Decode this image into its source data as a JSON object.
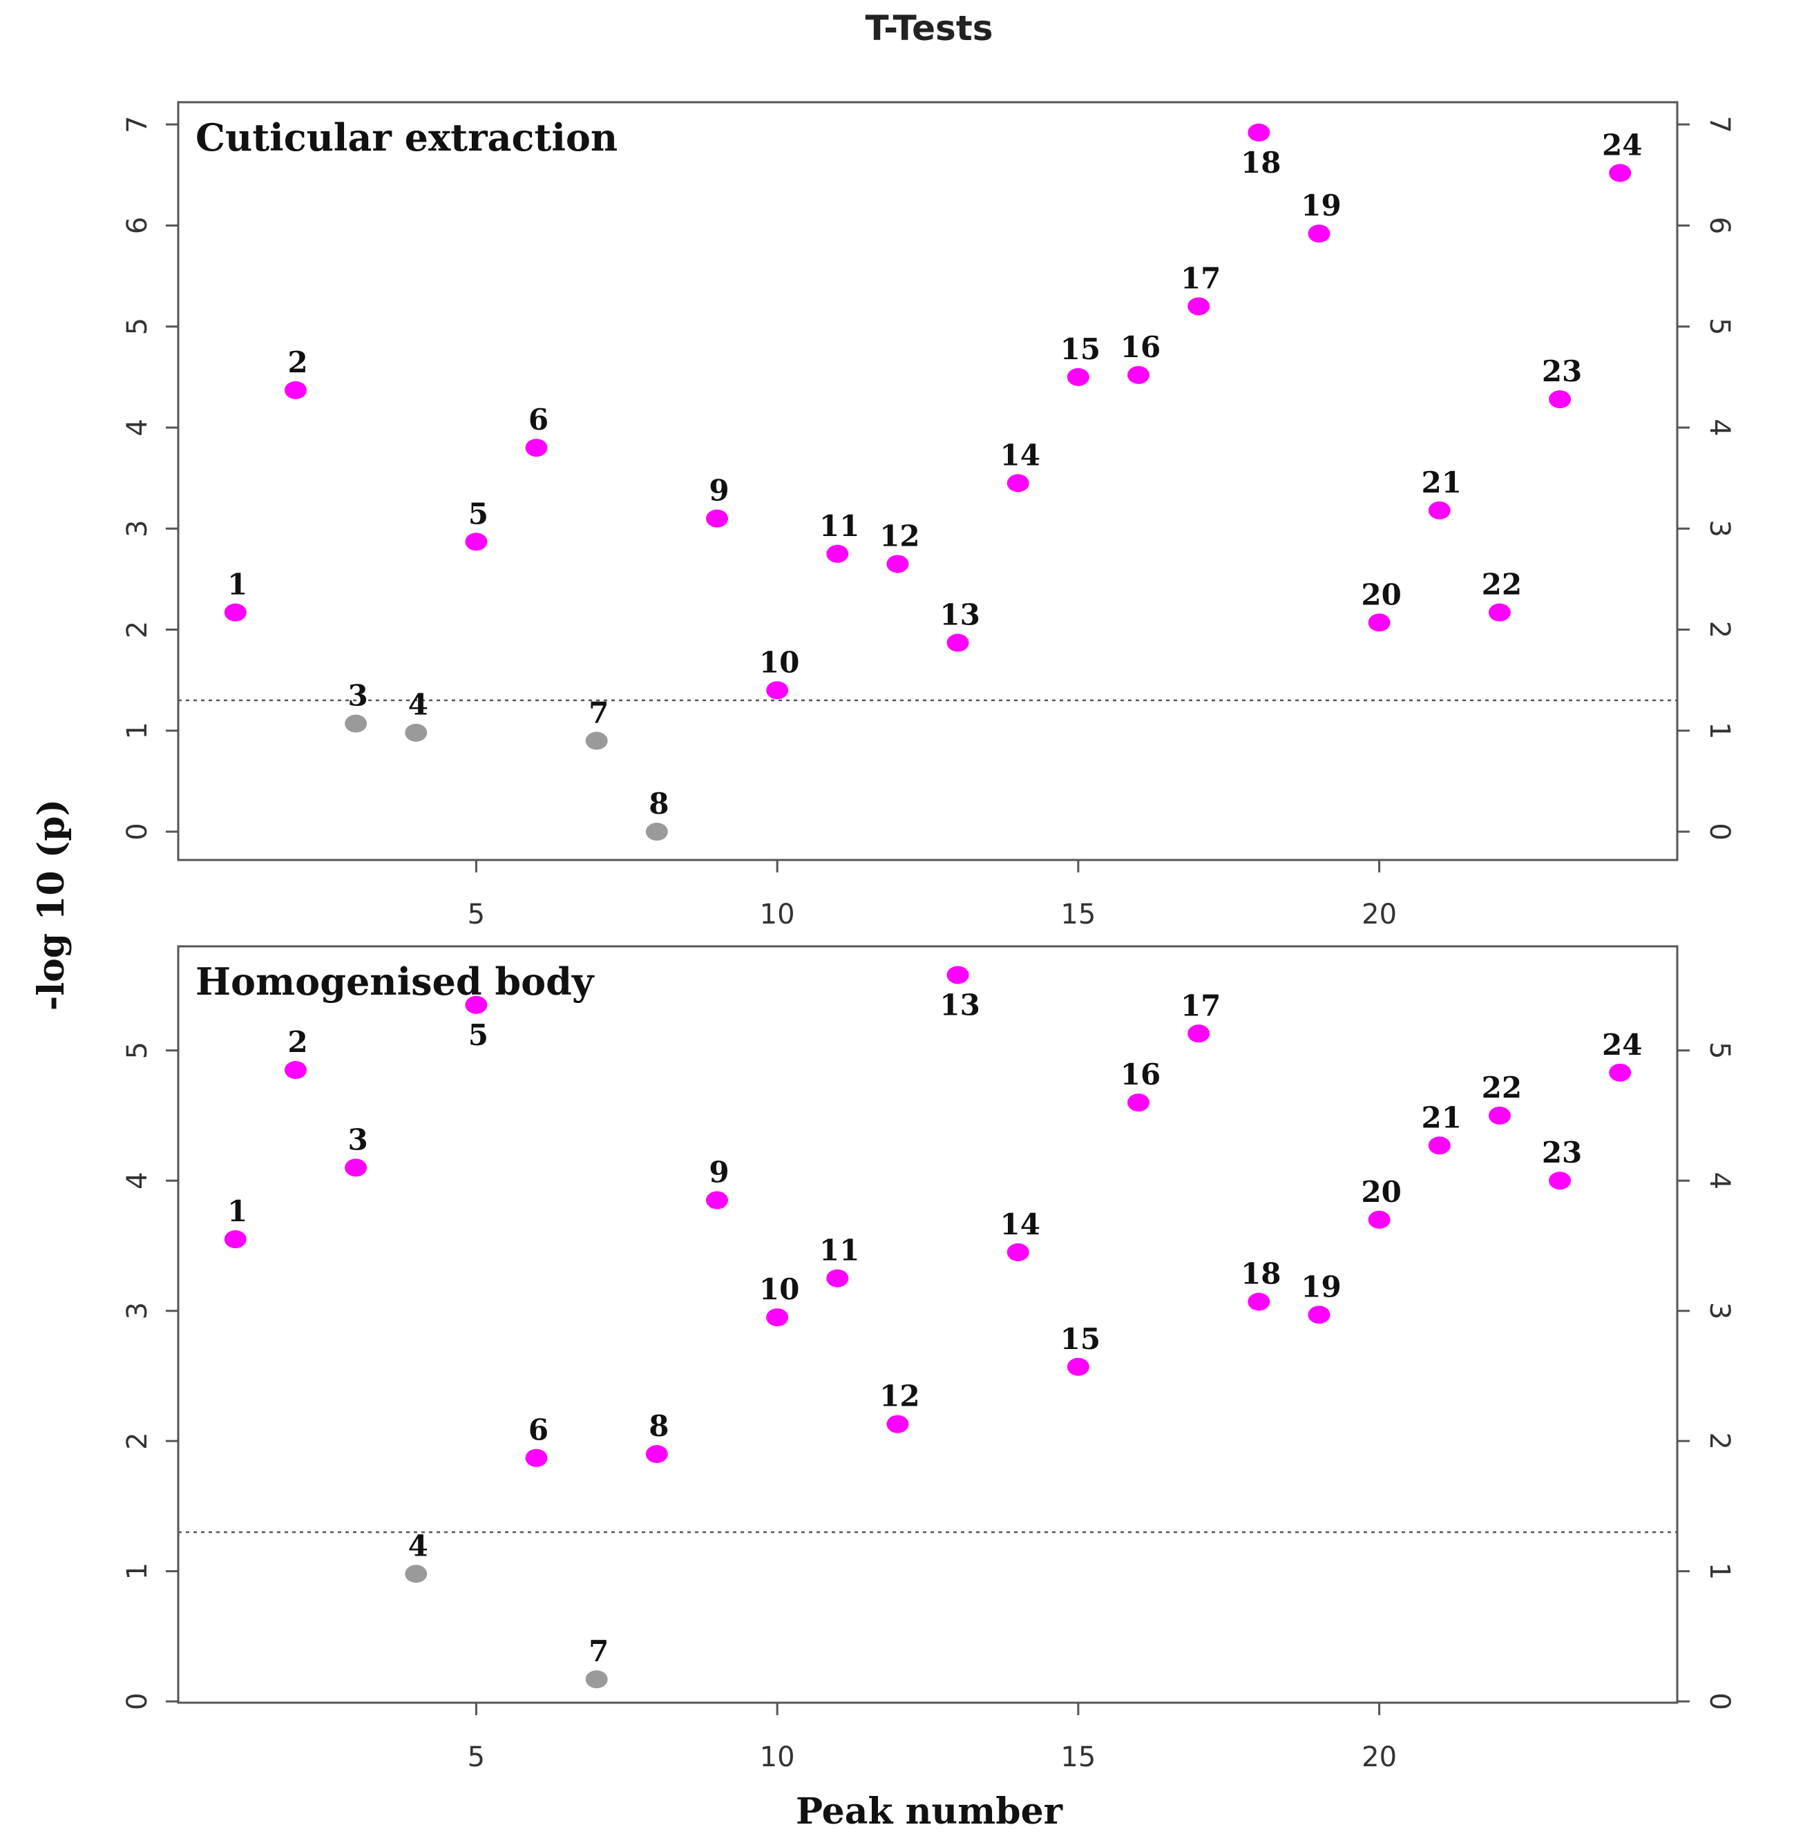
{
  "chart_data": {
    "type": "scatter",
    "title": "T-Tests",
    "xlabel": "Peak number",
    "ylabel": "-log 10 (p)",
    "x_ticks": [
      5,
      10,
      15,
      20
    ],
    "threshold": 1.3,
    "colors": {
      "significant": "#ff00ff",
      "not_significant": "#9a9a9a"
    },
    "panels": [
      {
        "title": "Cuticular extraction",
        "xlim": [
          0.05,
          24.95
        ],
        "ylim": [
          -0.28,
          7.22
        ],
        "y_ticks": [
          0,
          1,
          2,
          3,
          4,
          5,
          6,
          7
        ],
        "points": [
          {
            "x": 1,
            "y": 2.17,
            "label": "1",
            "significant": true
          },
          {
            "x": 2,
            "y": 4.37,
            "label": "2",
            "significant": true
          },
          {
            "x": 3,
            "y": 1.07,
            "label": "3",
            "significant": false
          },
          {
            "x": 4,
            "y": 0.98,
            "label": "4",
            "significant": false
          },
          {
            "x": 5,
            "y": 2.87,
            "label": "5",
            "significant": true
          },
          {
            "x": 6,
            "y": 3.8,
            "label": "6",
            "significant": true
          },
          {
            "x": 7,
            "y": 0.9,
            "label": "7",
            "significant": false
          },
          {
            "x": 8,
            "y": 0.0,
            "label": "8",
            "significant": false
          },
          {
            "x": 9,
            "y": 3.1,
            "label": "9",
            "significant": true
          },
          {
            "x": 10,
            "y": 1.4,
            "label": "10",
            "significant": true
          },
          {
            "x": 11,
            "y": 2.75,
            "label": "11",
            "significant": true
          },
          {
            "x": 12,
            "y": 2.65,
            "label": "12",
            "significant": true
          },
          {
            "x": 13,
            "y": 1.87,
            "label": "13",
            "significant": true
          },
          {
            "x": 14,
            "y": 3.45,
            "label": "14",
            "significant": true
          },
          {
            "x": 15,
            "y": 4.5,
            "label": "15",
            "significant": true
          },
          {
            "x": 16,
            "y": 4.52,
            "label": "16",
            "significant": true
          },
          {
            "x": 17,
            "y": 5.2,
            "label": "17",
            "significant": true
          },
          {
            "x": 18,
            "y": 6.92,
            "label": "18",
            "significant": true,
            "label_below": true
          },
          {
            "x": 19,
            "y": 5.92,
            "label": "19",
            "significant": true
          },
          {
            "x": 20,
            "y": 2.07,
            "label": "20",
            "significant": true
          },
          {
            "x": 21,
            "y": 3.18,
            "label": "21",
            "significant": true
          },
          {
            "x": 22,
            "y": 2.17,
            "label": "22",
            "significant": true
          },
          {
            "x": 23,
            "y": 4.28,
            "label": "23",
            "significant": true
          },
          {
            "x": 24,
            "y": 6.52,
            "label": "24",
            "significant": true
          }
        ]
      },
      {
        "title": "Homogenised body",
        "xlim": [
          0.05,
          24.95
        ],
        "ylim": [
          -0.01,
          5.8
        ],
        "y_ticks": [
          0,
          1,
          2,
          3,
          4,
          5
        ],
        "points": [
          {
            "x": 1,
            "y": 3.55,
            "label": "1",
            "significant": true
          },
          {
            "x": 2,
            "y": 4.85,
            "label": "2",
            "significant": true
          },
          {
            "x": 3,
            "y": 4.1,
            "label": "3",
            "significant": true
          },
          {
            "x": 4,
            "y": 0.98,
            "label": "4",
            "significant": false
          },
          {
            "x": 5,
            "y": 5.35,
            "label": "5",
            "significant": true,
            "label_below": true
          },
          {
            "x": 6,
            "y": 1.87,
            "label": "6",
            "significant": true
          },
          {
            "x": 7,
            "y": 0.17,
            "label": "7",
            "significant": false
          },
          {
            "x": 8,
            "y": 1.9,
            "label": "8",
            "significant": true
          },
          {
            "x": 9,
            "y": 3.85,
            "label": "9",
            "significant": true
          },
          {
            "x": 10,
            "y": 2.95,
            "label": "10",
            "significant": true
          },
          {
            "x": 11,
            "y": 3.25,
            "label": "11",
            "significant": true
          },
          {
            "x": 12,
            "y": 2.13,
            "label": "12",
            "significant": true
          },
          {
            "x": 13,
            "y": 5.58,
            "label": "13",
            "significant": true,
            "label_below": true
          },
          {
            "x": 14,
            "y": 3.45,
            "label": "14",
            "significant": true
          },
          {
            "x": 15,
            "y": 2.57,
            "label": "15",
            "significant": true
          },
          {
            "x": 16,
            "y": 4.6,
            "label": "16",
            "significant": true
          },
          {
            "x": 17,
            "y": 5.13,
            "label": "17",
            "significant": true
          },
          {
            "x": 18,
            "y": 3.07,
            "label": "18",
            "significant": true
          },
          {
            "x": 19,
            "y": 2.97,
            "label": "19",
            "significant": true
          },
          {
            "x": 20,
            "y": 3.7,
            "label": "20",
            "significant": true
          },
          {
            "x": 21,
            "y": 4.27,
            "label": "21",
            "significant": true
          },
          {
            "x": 22,
            "y": 4.5,
            "label": "22",
            "significant": true
          },
          {
            "x": 23,
            "y": 4.0,
            "label": "23",
            "significant": true
          },
          {
            "x": 24,
            "y": 4.83,
            "label": "24",
            "significant": true
          }
        ]
      }
    ]
  }
}
